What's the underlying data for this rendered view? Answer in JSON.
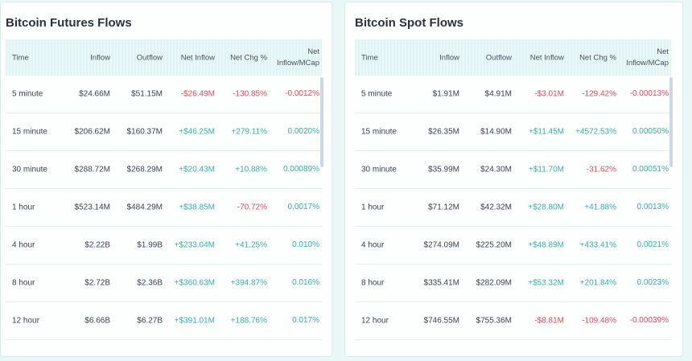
{
  "colors": {
    "negative": "#e04a63",
    "positive": "#38b0a5",
    "background": "#e9f7f7"
  },
  "columns": [
    "Time",
    "Inflow",
    "Outflow",
    "Net Inflow",
    "Net Chg %",
    "Net Inflow/MCap"
  ],
  "panels": [
    {
      "title": "Bitcoin Futures Flows",
      "rows": [
        [
          "5 minute",
          "$24.66M",
          "$51.15M",
          "-$26.49M",
          "-130.85%",
          "-0.0012%"
        ],
        [
          "15 minute",
          "$206.62M",
          "$160.37M",
          "+$46.25M",
          "+279.11%",
          "0.0020%"
        ],
        [
          "30 minute",
          "$288.72M",
          "$268.29M",
          "+$20.43M",
          "+10.88%",
          "0.00089%"
        ],
        [
          "1 hour",
          "$523.14M",
          "$484.29M",
          "+$38.85M",
          "-70.72%",
          "0.0017%"
        ],
        [
          "4 hour",
          "$2.22B",
          "$1.99B",
          "+$233.04M",
          "+41.25%",
          "0.010%"
        ],
        [
          "8 hour",
          "$2.72B",
          "$2.36B",
          "+$360.63M",
          "+394.87%",
          "0.016%"
        ],
        [
          "12 hour",
          "$6.66B",
          "$6.27B",
          "+$391.01M",
          "+188.76%",
          "0.017%"
        ]
      ]
    },
    {
      "title": "Bitcoin Spot Flows",
      "rows": [
        [
          "5 minute",
          "$1.91M",
          "$4.91M",
          "-$3.01M",
          "-129.42%",
          "-0.00013%"
        ],
        [
          "15 minute",
          "$26.35M",
          "$14.90M",
          "+$11.45M",
          "+4572.53%",
          "0.00050%"
        ],
        [
          "30 minute",
          "$35.99M",
          "$24.30M",
          "+$11.70M",
          "-31.62%",
          "0.00051%"
        ],
        [
          "1 hour",
          "$71.12M",
          "$42.32M",
          "+$28.80M",
          "+41.88%",
          "0.0013%"
        ],
        [
          "4 hour",
          "$274.09M",
          "$225.20M",
          "+$48.89M",
          "+433.41%",
          "0.0021%"
        ],
        [
          "8 hour",
          "$335.41M",
          "$282.09M",
          "+$53.32M",
          "+201.84%",
          "0.0023%"
        ],
        [
          "12 hour",
          "$746.55M",
          "$755.36M",
          "-$8.81M",
          "-109.48%",
          "-0.00039%"
        ]
      ]
    }
  ]
}
